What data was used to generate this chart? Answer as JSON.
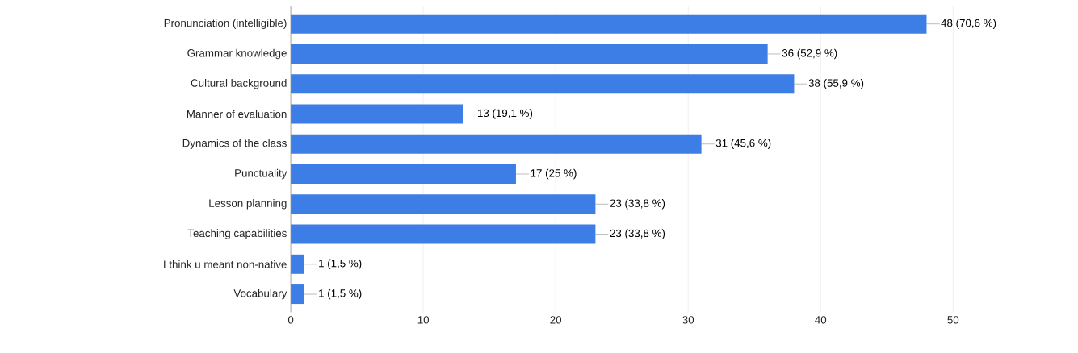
{
  "chart_data": {
    "type": "bar",
    "orientation": "horizontal",
    "categories": [
      "Pronunciation (intelligible)",
      "Grammar knowledge",
      "Cultural background",
      "Manner of evaluation",
      "Dynamics of the class",
      "Punctuality",
      "Lesson planning",
      "Teaching capabilities",
      "I think u meant non-native",
      "Vocabulary"
    ],
    "values": [
      48,
      36,
      38,
      13,
      31,
      17,
      23,
      23,
      1,
      1
    ],
    "value_labels": [
      "48 (70,6 %)",
      "36 (52,9 %)",
      "38 (55,9 %)",
      "13 (19,1 %)",
      "31 (45,6 %)",
      "17 (25 %)",
      "23 (33,8 %)",
      "23 (33,8 %)",
      "1 (1,5 %)",
      "1 (1,5 %)"
    ],
    "color": "#3d7de6",
    "xlim": [
      0,
      50
    ],
    "xticks": [
      0,
      10,
      20,
      30,
      40,
      50
    ],
    "grid": "x"
  }
}
